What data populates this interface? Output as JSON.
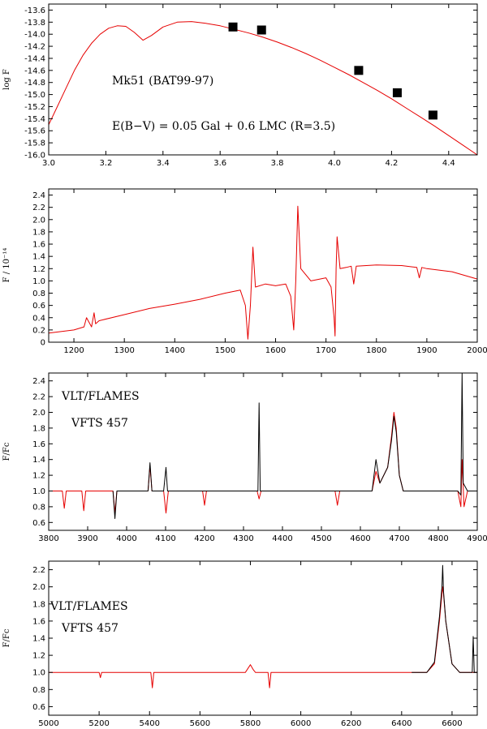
{
  "colors": {
    "model": "#e60000",
    "observed": "#000000",
    "frame": "#000000"
  },
  "chart_data": [
    {
      "type": "line",
      "panel": "sed",
      "ylabel": "log F",
      "xlabel": "",
      "xlim": [
        3.0,
        4.5
      ],
      "ylim": [
        -16.0,
        -13.5
      ],
      "xticks": [
        3.0,
        3.2,
        3.4,
        3.6,
        3.8,
        4.0,
        4.2,
        4.4
      ],
      "xtick_labels": [
        "3.0",
        "3.2",
        "3.4",
        "3.6",
        "3.8",
        "4.0",
        "4.2",
        "4.4"
      ],
      "yticks": [
        -16.0,
        -15.8,
        -15.6,
        -15.4,
        -15.2,
        -15.0,
        -14.8,
        -14.6,
        -14.4,
        -14.2,
        -14.0,
        -13.8,
        -13.6
      ],
      "ytick_labels": [
        "-16.0",
        "-15.8",
        "-15.6",
        "-15.4",
        "-15.2",
        "-15.0",
        "-14.8",
        "-14.6",
        "-14.4",
        "-14.2",
        "-14.0",
        "-13.8",
        "-13.6"
      ],
      "annotations": [
        "Mk51 (BAT99-97)",
        "E(B−V) = 0.05 Gal + 0.6 LMC (R=3.5)"
      ],
      "series": [
        {
          "name": "model",
          "color": "#e60000",
          "x": [
            3.0,
            3.03,
            3.06,
            3.09,
            3.12,
            3.15,
            3.18,
            3.21,
            3.24,
            3.27,
            3.3,
            3.33,
            3.36,
            3.4,
            3.45,
            3.5,
            3.55,
            3.6,
            3.65,
            3.7,
            3.75,
            3.8,
            3.85,
            3.9,
            3.95,
            4.0,
            4.05,
            4.1,
            4.15,
            4.2,
            4.25,
            4.3,
            4.35,
            4.4,
            4.45,
            4.5
          ],
          "y": [
            -15.5,
            -15.2,
            -14.9,
            -14.6,
            -14.35,
            -14.15,
            -14.0,
            -13.9,
            -13.86,
            -13.87,
            -13.97,
            -14.1,
            -14.02,
            -13.88,
            -13.8,
            -13.79,
            -13.82,
            -13.86,
            -13.92,
            -13.98,
            -14.05,
            -14.13,
            -14.22,
            -14.32,
            -14.43,
            -14.55,
            -14.67,
            -14.8,
            -14.93,
            -15.07,
            -15.22,
            -15.37,
            -15.52,
            -15.68,
            -15.84,
            -16.0
          ]
        },
        {
          "name": "photometry",
          "color": "#000000",
          "marker": "square",
          "x": [
            3.645,
            3.745,
            4.085,
            4.22,
            4.345
          ],
          "y": [
            -13.88,
            -13.93,
            -14.6,
            -14.97,
            -15.34
          ]
        }
      ]
    },
    {
      "type": "line",
      "panel": "uv",
      "ylabel": "F / 10⁻¹⁴",
      "xlabel": "",
      "xlim": [
        1150,
        2000
      ],
      "ylim": [
        0,
        2.5
      ],
      "xticks": [
        1200,
        1300,
        1400,
        1500,
        1600,
        1700,
        1800,
        1900,
        2000
      ],
      "xtick_labels": [
        "1200",
        "1300",
        "1400",
        "1500",
        "1600",
        "1700",
        "1800",
        "1900",
        "2000"
      ],
      "yticks": [
        0,
        0.2,
        0.4,
        0.6,
        0.8,
        1.0,
        1.2,
        1.4,
        1.6,
        1.8,
        2.0,
        2.2,
        2.4
      ],
      "ytick_labels": [
        "0",
        "0.2",
        "0.4",
        "0.6",
        "0.8",
        "1.0",
        "1.2",
        "1.4",
        "1.6",
        "1.8",
        "2.0",
        "2.2",
        "2.4"
      ],
      "annotations": [],
      "series": [
        {
          "name": "observed",
          "color": "#e60000",
          "x": [
            1150,
            1200,
            1220,
            1225,
            1235,
            1240,
            1243,
            1250,
            1300,
            1350,
            1400,
            1450,
            1500,
            1530,
            1540,
            1545,
            1550,
            1555,
            1560,
            1580,
            1600,
            1620,
            1630,
            1636,
            1640,
            1644,
            1650,
            1670,
            1700,
            1710,
            1716,
            1718,
            1720,
            1722,
            1728,
            1740,
            1750,
            1755,
            1760,
            1800,
            1850,
            1880,
            1885,
            1890,
            1900,
            1950,
            2000
          ],
          "y": [
            0.15,
            0.2,
            0.25,
            0.4,
            0.25,
            0.48,
            0.3,
            0.35,
            0.45,
            0.55,
            0.62,
            0.7,
            0.8,
            0.85,
            0.6,
            0.05,
            0.6,
            1.55,
            0.9,
            0.95,
            0.92,
            0.95,
            0.75,
            0.2,
            1.0,
            2.22,
            1.2,
            1.0,
            1.05,
            0.9,
            0.4,
            0.1,
            1.2,
            1.72,
            1.2,
            1.22,
            1.24,
            0.95,
            1.24,
            1.26,
            1.25,
            1.22,
            1.05,
            1.22,
            1.2,
            1.15,
            1.03
          ]
        }
      ]
    },
    {
      "type": "line",
      "panel": "optical-blue",
      "ylabel": "F/Fc",
      "xlabel": "",
      "xlim": [
        3800,
        4900
      ],
      "ylim": [
        0.5,
        2.5
      ],
      "xticks": [
        3800,
        3900,
        4000,
        4100,
        4200,
        4300,
        4400,
        4500,
        4600,
        4700,
        4800,
        4900
      ],
      "xtick_labels": [
        "3800",
        "3900",
        "4000",
        "4100",
        "4200",
        "4300",
        "4400",
        "4500",
        "4600",
        "4700",
        "4800",
        "4900"
      ],
      "yticks": [
        0.6,
        0.8,
        1.0,
        1.2,
        1.4,
        1.6,
        1.8,
        2.0,
        2.2,
        2.4
      ],
      "ytick_labels": [
        "0.6",
        "0.8",
        "1.0",
        "1.2",
        "1.4",
        "1.6",
        "1.8",
        "2.0",
        "2.2",
        "2.4"
      ],
      "annotations": [
        "VLT/FLAMES",
        "VFTS 457"
      ],
      "series": [
        {
          "name": "model",
          "color": "#e60000",
          "x": [
            3800,
            3835,
            3840,
            3845,
            3885,
            3890,
            3895,
            3965,
            3970,
            3975,
            4055,
            4060,
            4065,
            4095,
            4101,
            4107,
            4195,
            4200,
            4205,
            4335,
            4340,
            4345,
            4535,
            4541,
            4547,
            4630,
            4640,
            4650,
            4670,
            4680,
            4686,
            4692,
            4700,
            4710,
            4850,
            4858,
            4861,
            4866,
            4875,
            4900
          ],
          "y": [
            1.0,
            1.0,
            0.78,
            1.0,
            1.0,
            0.75,
            1.0,
            1.0,
            0.72,
            1.0,
            1.0,
            1.32,
            1.0,
            1.0,
            0.72,
            1.0,
            1.0,
            0.82,
            1.0,
            1.0,
            0.9,
            1.0,
            1.0,
            0.82,
            1.0,
            1.0,
            1.25,
            1.1,
            1.3,
            1.7,
            2.0,
            1.8,
            1.2,
            1.0,
            1.0,
            0.8,
            1.4,
            0.8,
            1.0,
            1.0
          ]
        },
        {
          "name": "observed",
          "color": "#000000",
          "x": [
            3965,
            3970,
            3975,
            4055,
            4060,
            4065,
            4095,
            4101,
            4105,
            4337,
            4340,
            4343,
            4630,
            4640,
            4650,
            4670,
            4680,
            4686,
            4692,
            4700,
            4710,
            4850,
            4858,
            4861,
            4864,
            4875,
            4900
          ],
          "y": [
            1.0,
            0.65,
            1.0,
            1.0,
            1.36,
            1.0,
            1.0,
            1.3,
            1.0,
            1.0,
            2.12,
            1.0,
            1.0,
            1.4,
            1.1,
            1.3,
            1.65,
            1.95,
            1.75,
            1.2,
            1.0,
            1.0,
            0.95,
            2.5,
            1.1,
            1.0,
            1.0
          ]
        }
      ]
    },
    {
      "type": "line",
      "panel": "optical-red",
      "ylabel": "F/Fc",
      "xlabel": "",
      "xlim": [
        5000,
        6700
      ],
      "ylim": [
        0.5,
        2.3
      ],
      "xticks": [
        5000,
        5200,
        5400,
        5600,
        5800,
        6000,
        6200,
        6400,
        6600
      ],
      "xtick_labels": [
        "5000",
        "5200",
        "5400",
        "5600",
        "5800",
        "6000",
        "6200",
        "6400",
        "6600"
      ],
      "yticks": [
        0.6,
        0.8,
        1.0,
        1.2,
        1.4,
        1.6,
        1.8,
        2.0,
        2.2
      ],
      "ytick_labels": [
        "0.6",
        "0.8",
        "1.0",
        "1.2",
        "1.4",
        "1.6",
        "1.8",
        "2.0",
        "2.2"
      ],
      "annotations": [
        "VLT/FLAMES",
        "VFTS 457"
      ],
      "series": [
        {
          "name": "model",
          "color": "#e60000",
          "x": [
            5000,
            5200,
            5205,
            5210,
            5405,
            5411,
            5417,
            5780,
            5800,
            5812,
            5820,
            5870,
            5876,
            5882,
            6400,
            6500,
            6530,
            6550,
            6560,
            6563,
            6566,
            6575,
            6600,
            6630,
            6700
          ],
          "y": [
            1.0,
            1.0,
            0.94,
            1.0,
            1.0,
            0.82,
            1.0,
            1.0,
            1.09,
            1.03,
            1.0,
            1.0,
            0.82,
            1.0,
            1.0,
            1.0,
            1.1,
            1.6,
            1.92,
            2.0,
            1.92,
            1.6,
            1.1,
            1.0,
            1.0
          ]
        },
        {
          "name": "observed",
          "color": "#000000",
          "x": [
            6440,
            6500,
            6530,
            6550,
            6560,
            6563,
            6566,
            6575,
            6600,
            6630,
            6680,
            6684,
            6688,
            6700
          ],
          "y": [
            1.0,
            1.0,
            1.12,
            1.65,
            2.0,
            2.25,
            1.95,
            1.6,
            1.1,
            1.0,
            1.0,
            1.42,
            1.0,
            1.0
          ]
        }
      ]
    }
  ]
}
